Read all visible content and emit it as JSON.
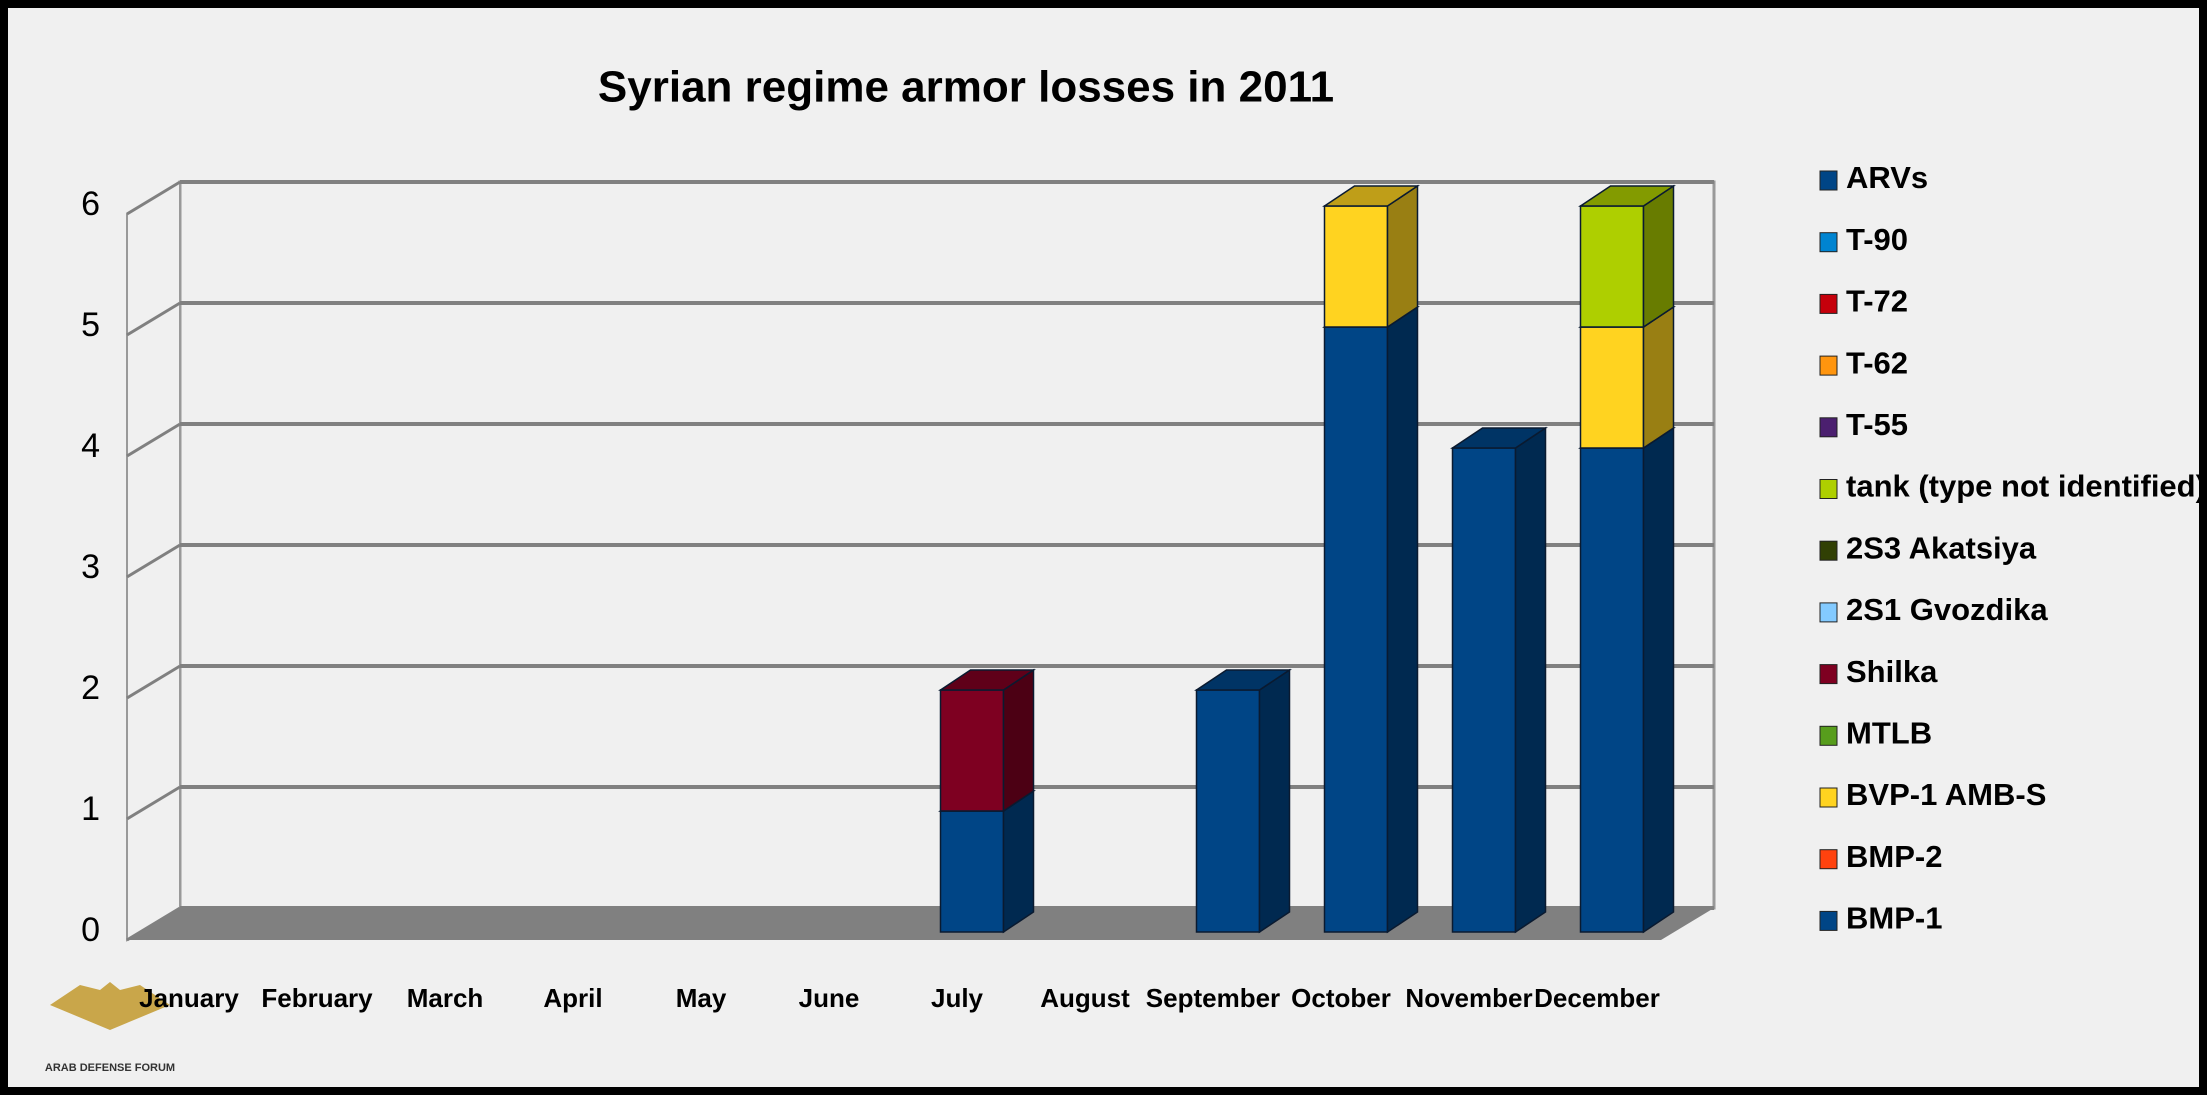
{
  "chart_data": {
    "type": "bar",
    "stacked": true,
    "title": "Syrian regime armor losses in 2011",
    "categories": [
      "January",
      "February",
      "March",
      "April",
      "May",
      "June",
      "July",
      "August",
      "September",
      "October",
      "November",
      "December"
    ],
    "series": [
      {
        "name": "BMP-1",
        "color": "#004586",
        "values": [
          0,
          0,
          0,
          0,
          0,
          0,
          1,
          0,
          2,
          5,
          4,
          4
        ]
      },
      {
        "name": "BMP-2",
        "color": "#ff420e",
        "values": [
          0,
          0,
          0,
          0,
          0,
          0,
          0,
          0,
          0,
          0,
          0,
          0
        ]
      },
      {
        "name": "BVP-1 AMB-S",
        "color": "#ffd320",
        "values": [
          0,
          0,
          0,
          0,
          0,
          0,
          0,
          0,
          0,
          1,
          0,
          1
        ]
      },
      {
        "name": "MTLB",
        "color": "#579d1c",
        "values": [
          0,
          0,
          0,
          0,
          0,
          0,
          0,
          0,
          0,
          0,
          0,
          0
        ]
      },
      {
        "name": "Shilka",
        "color": "#7e0021",
        "values": [
          0,
          0,
          0,
          0,
          0,
          0,
          1,
          0,
          0,
          0,
          0,
          0
        ]
      },
      {
        "name": "2S1 Gvozdika",
        "color": "#83caff",
        "values": [
          0,
          0,
          0,
          0,
          0,
          0,
          0,
          0,
          0,
          0,
          0,
          0
        ]
      },
      {
        "name": "2S3 Akatsiya",
        "color": "#314004",
        "values": [
          0,
          0,
          0,
          0,
          0,
          0,
          0,
          0,
          0,
          0,
          0,
          0
        ]
      },
      {
        "name": "tank (type not identified)",
        "color": "#aecf00",
        "values": [
          0,
          0,
          0,
          0,
          0,
          0,
          0,
          0,
          0,
          0,
          0,
          1
        ]
      },
      {
        "name": "T-55",
        "color": "#4b1f6f",
        "values": [
          0,
          0,
          0,
          0,
          0,
          0,
          0,
          0,
          0,
          0,
          0,
          0
        ]
      },
      {
        "name": "T-62",
        "color": "#ff950e",
        "values": [
          0,
          0,
          0,
          0,
          0,
          0,
          0,
          0,
          0,
          0,
          0,
          0
        ]
      },
      {
        "name": "T-72",
        "color": "#c5000b",
        "values": [
          0,
          0,
          0,
          0,
          0,
          0,
          0,
          0,
          0,
          0,
          0,
          0
        ]
      },
      {
        "name": "T-90",
        "color": "#0084d1",
        "values": [
          0,
          0,
          0,
          0,
          0,
          0,
          0,
          0,
          0,
          0,
          0,
          0
        ]
      },
      {
        "name": "ARVs",
        "color": "#004586",
        "values": [
          0,
          0,
          0,
          0,
          0,
          0,
          0,
          0,
          0,
          0,
          0,
          0
        ]
      }
    ],
    "ylim": [
      0,
      6
    ],
    "yticks": [
      0,
      1,
      2,
      3,
      4,
      5,
      6
    ],
    "grid": true,
    "legend": "right",
    "watermark": "ARAB DEFENSE FORUM"
  }
}
